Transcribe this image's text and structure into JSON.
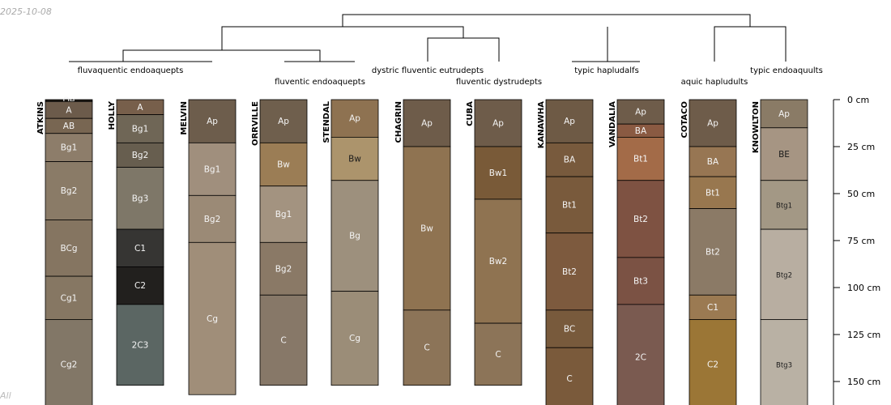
{
  "meta": {
    "date": "2025-10-08",
    "corner_note": "All"
  },
  "chart_data": {
    "type": "soil-profile-sketch",
    "depth_unit": "cm",
    "depth_axis": {
      "ticks": [
        0,
        25,
        50,
        75,
        100,
        125,
        150
      ],
      "labels": [
        "0 cm",
        "25 cm",
        "50 cm",
        "75 cm",
        "100 cm",
        "125 cm",
        "150 cm"
      ]
    },
    "profiles": [
      {
        "name": "ATKINS",
        "horizons": [
          {
            "name": "Oe",
            "top": 0,
            "bottom": 1,
            "color": "#1e1a15"
          },
          {
            "name": "A",
            "top": 1,
            "bottom": 10,
            "color": "#6c5b4b"
          },
          {
            "name": "AB",
            "top": 10,
            "bottom": 18,
            "color": "#786652"
          },
          {
            "name": "Bg1",
            "top": 18,
            "bottom": 33,
            "color": "#8d7d6a"
          },
          {
            "name": "Bg2",
            "top": 33,
            "bottom": 64,
            "color": "#8a7b67"
          },
          {
            "name": "BCg",
            "top": 64,
            "bottom": 94,
            "color": "#857561"
          },
          {
            "name": "Cg1",
            "top": 94,
            "bottom": 117,
            "color": "#867763"
          },
          {
            "name": "Cg2",
            "top": 117,
            "bottom": 165,
            "color": "#827767"
          }
        ]
      },
      {
        "name": "HOLLY",
        "horizons": [
          {
            "name": "A",
            "top": 0,
            "bottom": 8,
            "color": "#775f4b"
          },
          {
            "name": "Bg1",
            "top": 8,
            "bottom": 23,
            "color": "#6f6656"
          },
          {
            "name": "Bg2",
            "top": 23,
            "bottom": 36,
            "color": "#675e4f"
          },
          {
            "name": "Bg3",
            "top": 36,
            "bottom": 69,
            "color": "#7e7768"
          },
          {
            "name": "C1",
            "top": 69,
            "bottom": 89,
            "color": "#363533"
          },
          {
            "name": "C2",
            "top": 89,
            "bottom": 109,
            "color": "#22201e"
          },
          {
            "name": "2C3",
            "top": 109,
            "bottom": 152,
            "color": "#5b6663"
          }
        ]
      },
      {
        "name": "MELVIN",
        "horizons": [
          {
            "name": "Ap",
            "top": 0,
            "bottom": 23,
            "color": "#6d5d4c"
          },
          {
            "name": "Bg1",
            "top": 23,
            "bottom": 51,
            "color": "#a08f7d"
          },
          {
            "name": "Bg2",
            "top": 51,
            "bottom": 76,
            "color": "#9b8a76"
          },
          {
            "name": "Cg",
            "top": 76,
            "bottom": 157,
            "color": "#a08e79"
          }
        ]
      },
      {
        "name": "ORRVILLE",
        "horizons": [
          {
            "name": "Ap",
            "top": 0,
            "bottom": 23,
            "color": "#6f5f4d"
          },
          {
            "name": "Bw",
            "top": 23,
            "bottom": 46,
            "color": "#9b7d55"
          },
          {
            "name": "Bg1",
            "top": 46,
            "bottom": 76,
            "color": "#a39380"
          },
          {
            "name": "Bg2",
            "top": 76,
            "bottom": 104,
            "color": "#8a7966"
          },
          {
            "name": "C",
            "top": 104,
            "bottom": 152,
            "color": "#877868"
          }
        ]
      },
      {
        "name": "STENDAL",
        "horizons": [
          {
            "name": "Ap",
            "top": 0,
            "bottom": 20,
            "color": "#8e7251"
          },
          {
            "name": "Bw",
            "top": 20,
            "bottom": 43,
            "color": "#ac946c"
          },
          {
            "name": "Bg",
            "top": 43,
            "bottom": 102,
            "color": "#9d907d"
          },
          {
            "name": "Cg",
            "top": 102,
            "bottom": 152,
            "color": "#9b8d78"
          }
        ]
      },
      {
        "name": "CHAGRIN",
        "horizons": [
          {
            "name": "Ap",
            "top": 0,
            "bottom": 25,
            "color": "#6e5c4a"
          },
          {
            "name": "Bw",
            "top": 25,
            "bottom": 112,
            "color": "#8f7351"
          },
          {
            "name": "C",
            "top": 112,
            "bottom": 152,
            "color": "#8c7458"
          }
        ]
      },
      {
        "name": "CUBA",
        "horizons": [
          {
            "name": "Ap",
            "top": 0,
            "bottom": 25,
            "color": "#6e5c4a"
          },
          {
            "name": "Bw1",
            "top": 25,
            "bottom": 53,
            "color": "#795a38"
          },
          {
            "name": "Bw2",
            "top": 53,
            "bottom": 119,
            "color": "#8f7351"
          },
          {
            "name": "C",
            "top": 119,
            "bottom": 152,
            "color": "#8c7458"
          }
        ]
      },
      {
        "name": "KANAWHA",
        "horizons": [
          {
            "name": "Ap",
            "top": 0,
            "bottom": 23,
            "color": "#6e5a45"
          },
          {
            "name": "BA",
            "top": 23,
            "bottom": 41,
            "color": "#785a3d"
          },
          {
            "name": "Bt1",
            "top": 41,
            "bottom": 71,
            "color": "#795a3c"
          },
          {
            "name": "Bt2",
            "top": 71,
            "bottom": 112,
            "color": "#7d5a3e"
          },
          {
            "name": "BC",
            "top": 112,
            "bottom": 132,
            "color": "#785a3c"
          },
          {
            "name": "C",
            "top": 132,
            "bottom": 165,
            "color": "#7a5a3b"
          }
        ]
      },
      {
        "name": "VANDALIA",
        "horizons": [
          {
            "name": "Ap",
            "top": 0,
            "bottom": 13,
            "color": "#6e5c4a"
          },
          {
            "name": "BA",
            "top": 13,
            "bottom": 20,
            "color": "#8a5a42"
          },
          {
            "name": "Bt1",
            "top": 20,
            "bottom": 43,
            "color": "#a36b48"
          },
          {
            "name": "Bt2",
            "top": 43,
            "bottom": 84,
            "color": "#7e5242"
          },
          {
            "name": "Bt3",
            "top": 84,
            "bottom": 109,
            "color": "#7b5244"
          },
          {
            "name": "2C",
            "top": 109,
            "bottom": 165,
            "color": "#7a5a50"
          }
        ]
      },
      {
        "name": "COTACO",
        "horizons": [
          {
            "name": "Ap",
            "top": 0,
            "bottom": 25,
            "color": "#6e5c4a"
          },
          {
            "name": "BA",
            "top": 25,
            "bottom": 41,
            "color": "#977653"
          },
          {
            "name": "Bt1",
            "top": 41,
            "bottom": 58,
            "color": "#98774f"
          },
          {
            "name": "Bt2",
            "top": 58,
            "bottom": 104,
            "color": "#8b7a66"
          },
          {
            "name": "C1",
            "top": 104,
            "bottom": 117,
            "color": "#9b7a52"
          },
          {
            "name": "C2",
            "top": 117,
            "bottom": 165,
            "color": "#9b7636"
          }
        ]
      },
      {
        "name": "KNOWLTON",
        "horizons": [
          {
            "name": "Ap",
            "top": 0,
            "bottom": 15,
            "color": "#8a7b66"
          },
          {
            "name": "BE",
            "top": 15,
            "bottom": 43,
            "color": "#a69583"
          },
          {
            "name": "Btg1",
            "top": 43,
            "bottom": 69,
            "color": "#a39885"
          },
          {
            "name": "Btg2",
            "top": 69,
            "bottom": 117,
            "color": "#b8aea1"
          },
          {
            "name": "Btg3",
            "top": 117,
            "bottom": 165,
            "color": "#b9b1a4"
          }
        ]
      }
    ],
    "dendrogram": {
      "groups": [
        {
          "label": "fluvaquentic endoaquepts",
          "profiles": [
            "ATKINS",
            "HOLLY",
            "MELVIN"
          ]
        },
        {
          "label": "fluventic endoaquepts",
          "profiles": [
            "ORRVILLE",
            "STENDAL"
          ]
        },
        {
          "label": "dystric fluventic eutrudepts",
          "profiles": [
            "CHAGRIN"
          ]
        },
        {
          "label": "fluventic dystrudepts",
          "profiles": [
            "CUBA"
          ]
        },
        {
          "label": "typic hapludalfs",
          "profiles": [
            "KANAWHA",
            "VANDALIA"
          ]
        },
        {
          "label": "aquic hapludults",
          "profiles": [
            "COTACO"
          ]
        },
        {
          "label": "typic endoaquults",
          "profiles": [
            "KNOWLTON"
          ]
        }
      ]
    }
  }
}
